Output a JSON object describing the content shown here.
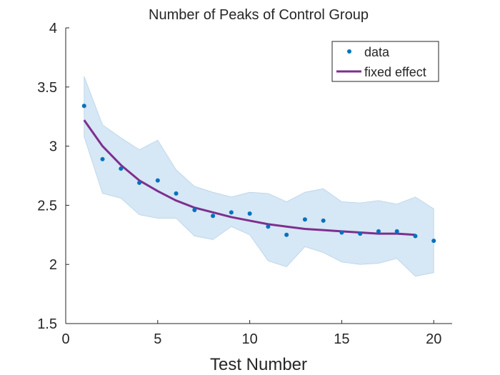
{
  "chart_data": {
    "type": "scatter",
    "title": "Number of Peaks of Control Group",
    "xlabel": "Test Number",
    "ylabel": "",
    "xlim": [
      0,
      21
    ],
    "ylim": [
      1.5,
      4
    ],
    "xticks": [
      0,
      5,
      10,
      15,
      20
    ],
    "yticks": [
      1.5,
      2,
      2.5,
      3,
      3.5,
      4
    ],
    "xtick_labels": [
      "0",
      "5",
      "10",
      "15",
      "20"
    ],
    "ytick_labels": [
      "1.5",
      "2",
      "2.5",
      "3",
      "3.5",
      "4"
    ],
    "grid": false,
    "legend_position": "top-right",
    "legend": [
      "data",
      "fixed effect"
    ],
    "series": [
      {
        "name": "data",
        "kind": "scatter",
        "color": "#0072BD",
        "x": [
          1,
          2,
          3,
          4,
          5,
          6,
          7,
          8,
          9,
          10,
          11,
          12,
          13,
          14,
          15,
          16,
          17,
          18,
          19,
          20
        ],
        "y": [
          3.34,
          2.89,
          2.81,
          2.69,
          2.71,
          2.6,
          2.46,
          2.41,
          2.44,
          2.43,
          2.32,
          2.25,
          2.38,
          2.37,
          2.27,
          2.26,
          2.28,
          2.28,
          2.24,
          2.2
        ]
      },
      {
        "name": "fixed effect",
        "kind": "line",
        "color": "#7E2F8E",
        "x": [
          1,
          2,
          3,
          4,
          5,
          6,
          7,
          8,
          9,
          10,
          11,
          12,
          13,
          14,
          15,
          16,
          17,
          18,
          19
        ],
        "y": [
          3.22,
          3.0,
          2.84,
          2.71,
          2.62,
          2.54,
          2.48,
          2.44,
          2.4,
          2.37,
          2.34,
          2.32,
          2.3,
          2.29,
          2.28,
          2.27,
          2.26,
          2.26,
          2.25
        ]
      }
    ],
    "band": {
      "color": "#D6E7F5",
      "x": [
        1,
        2,
        3,
        4,
        5,
        6,
        7,
        8,
        9,
        10,
        11,
        12,
        13,
        14,
        15,
        16,
        17,
        18,
        19,
        20
      ],
      "upper": [
        3.59,
        3.18,
        3.07,
        2.97,
        3.05,
        2.8,
        2.66,
        2.61,
        2.57,
        2.61,
        2.6,
        2.53,
        2.61,
        2.64,
        2.53,
        2.52,
        2.54,
        2.51,
        2.57,
        2.47
      ],
      "lower": [
        3.08,
        2.6,
        2.56,
        2.42,
        2.39,
        2.39,
        2.24,
        2.21,
        2.32,
        2.25,
        2.03,
        1.98,
        2.15,
        2.1,
        2.02,
        2.0,
        2.01,
        2.05,
        1.9,
        1.93
      ]
    }
  }
}
